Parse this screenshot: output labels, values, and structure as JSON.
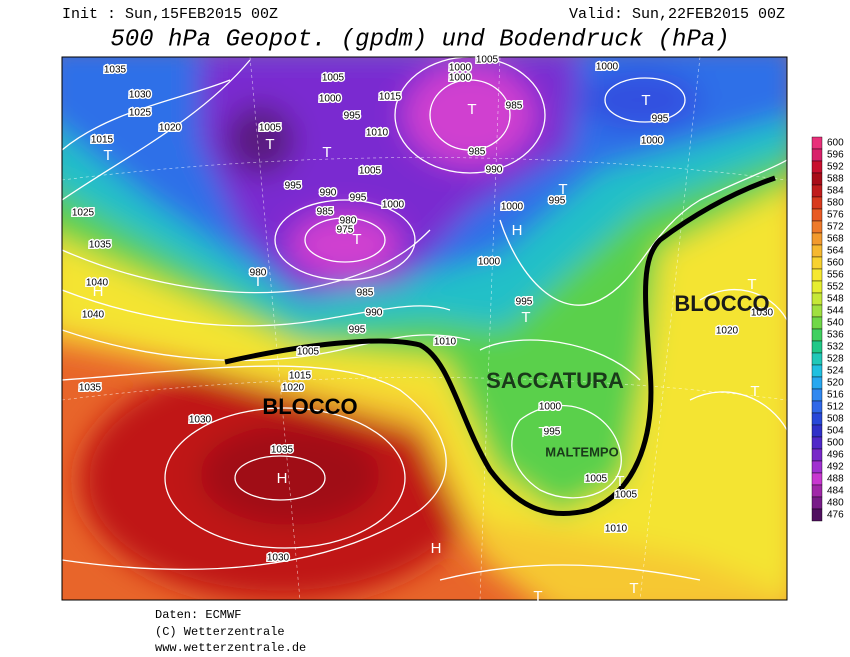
{
  "header": {
    "init": "Init : Sun,15FEB2015 00Z",
    "valid": "Valid: Sun,22FEB2015 00Z",
    "title": "500 hPa Geopot. (gpdm) und Bodendruck (hPa)"
  },
  "annotations": [
    "BLOCCO",
    "SACCATURA",
    "MALTEMPO",
    "BLOCCO"
  ],
  "isobar_labels": [
    1035,
    1030,
    1025,
    1020,
    1015,
    1025,
    1035,
    1040,
    1040,
    1035,
    1030,
    1015,
    1020,
    1005,
    995,
    990,
    985,
    980,
    975,
    980,
    985,
    990,
    995,
    995,
    1000,
    1005,
    1010,
    1000,
    995,
    1005,
    1005,
    1015,
    1000,
    1000,
    1005,
    985,
    985,
    990,
    1000,
    995,
    1000,
    995,
    1000,
    1000,
    995,
    1010,
    1000,
    995,
    1005,
    1005,
    1010,
    1035,
    1030,
    1020,
    1030
  ],
  "centers": [
    "T",
    "T",
    "T",
    "T",
    "T",
    "T",
    "T",
    "T",
    "H",
    "T",
    "H",
    "H",
    "T",
    "T",
    "H",
    "T",
    "T",
    "T",
    "T"
  ],
  "colorbar": {
    "ticks": [
      600,
      596,
      592,
      588,
      584,
      580,
      576,
      572,
      568,
      564,
      560,
      556,
      552,
      548,
      544,
      540,
      536,
      532,
      528,
      524,
      520,
      516,
      512,
      508,
      504,
      500,
      496,
      492,
      488,
      484,
      480,
      476
    ],
    "colors": [
      "#e8307a",
      "#d8206a",
      "#c8102e",
      "#a80c18",
      "#c01c1c",
      "#d83a1e",
      "#e85a24",
      "#ee7a2a",
      "#f29a2e",
      "#f6b830",
      "#f8d230",
      "#f6e830",
      "#e6ee30",
      "#c6e838",
      "#a0e040",
      "#70d848",
      "#40d060",
      "#20c888",
      "#20c8b8",
      "#20c0e0",
      "#28a8f0",
      "#3088f0",
      "#3068e8",
      "#2848d8",
      "#3030c8",
      "#5028c8",
      "#7828c8",
      "#a030d0",
      "#c838d0",
      "#a028a8",
      "#781c88",
      "#501060"
    ]
  },
  "footer": [
    "Daten: ECMWF",
    "(C) Wetterzentrale",
    "www.wetterzentrale.de"
  ]
}
